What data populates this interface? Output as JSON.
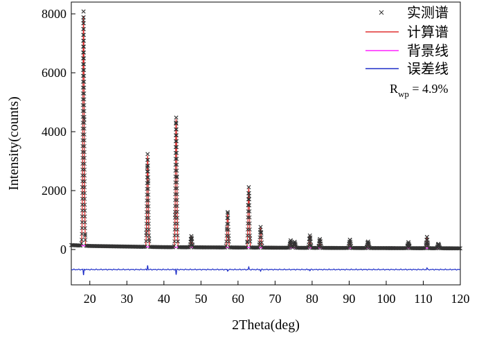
{
  "chart_data": {
    "type": "line",
    "xlabel": "2Theta(deg)",
    "ylabel": "Intensity(counts)",
    "xlim": [
      15,
      120
    ],
    "ylim": [
      -1200,
      8400
    ],
    "x_ticks": [
      20,
      30,
      40,
      50,
      60,
      70,
      80,
      90,
      100,
      110,
      120
    ],
    "y_ticks": [
      0,
      2000,
      4000,
      6000,
      8000
    ],
    "legend_position": "top-right",
    "annotation": {
      "base": "R",
      "subscript": "wp",
      "value": " = 4.9%"
    },
    "series": [
      {
        "name": "实测谱",
        "style": "cross-markers",
        "color": "#333333",
        "peaks": [
          [
            18.3,
            7950
          ],
          [
            35.6,
            3150
          ],
          [
            43.3,
            4400
          ],
          [
            47.4,
            380
          ],
          [
            57.2,
            1200
          ],
          [
            62.9,
            2050
          ],
          [
            66.1,
            700
          ],
          [
            74.2,
            250
          ],
          [
            75.3,
            200
          ],
          [
            79.4,
            420
          ],
          [
            82.1,
            300
          ],
          [
            90.2,
            280
          ],
          [
            95.1,
            220
          ],
          [
            106.0,
            200
          ],
          [
            111.0,
            380
          ],
          [
            114.1,
            150
          ]
        ],
        "background": [
          [
            15,
            150
          ],
          [
            20,
            120
          ],
          [
            40,
            80
          ],
          [
            80,
            55
          ],
          [
            120,
            40
          ]
        ]
      },
      {
        "name": "计算谱",
        "style": "line",
        "color": "#e03030",
        "peaks": [
          [
            18.3,
            7800
          ],
          [
            35.6,
            3100
          ],
          [
            43.3,
            4350
          ],
          [
            47.4,
            370
          ],
          [
            57.2,
            1180
          ],
          [
            62.9,
            2020
          ],
          [
            66.1,
            680
          ],
          [
            74.2,
            240
          ],
          [
            75.3,
            190
          ],
          [
            79.4,
            410
          ],
          [
            82.1,
            290
          ],
          [
            90.2,
            270
          ],
          [
            95.1,
            210
          ],
          [
            106.0,
            190
          ],
          [
            111.0,
            370
          ],
          [
            114.1,
            145
          ]
        ],
        "background": [
          [
            15,
            150
          ],
          [
            20,
            120
          ],
          [
            40,
            80
          ],
          [
            80,
            55
          ],
          [
            120,
            40
          ]
        ]
      },
      {
        "name": "背景线",
        "style": "line",
        "color": "#ff20ff",
        "points": [
          [
            15,
            150
          ],
          [
            20,
            120
          ],
          [
            40,
            80
          ],
          [
            80,
            55
          ],
          [
            120,
            40
          ]
        ]
      },
      {
        "name": "误差线",
        "style": "line",
        "color": "#1f2fc8",
        "offset": -680,
        "features": [
          [
            18.3,
            -200
          ],
          [
            35.6,
            150
          ],
          [
            43.3,
            -180
          ],
          [
            57.2,
            -60
          ],
          [
            62.9,
            90
          ],
          [
            66.1,
            -50
          ],
          [
            79.4,
            -40
          ],
          [
            111.0,
            60
          ]
        ]
      }
    ]
  }
}
